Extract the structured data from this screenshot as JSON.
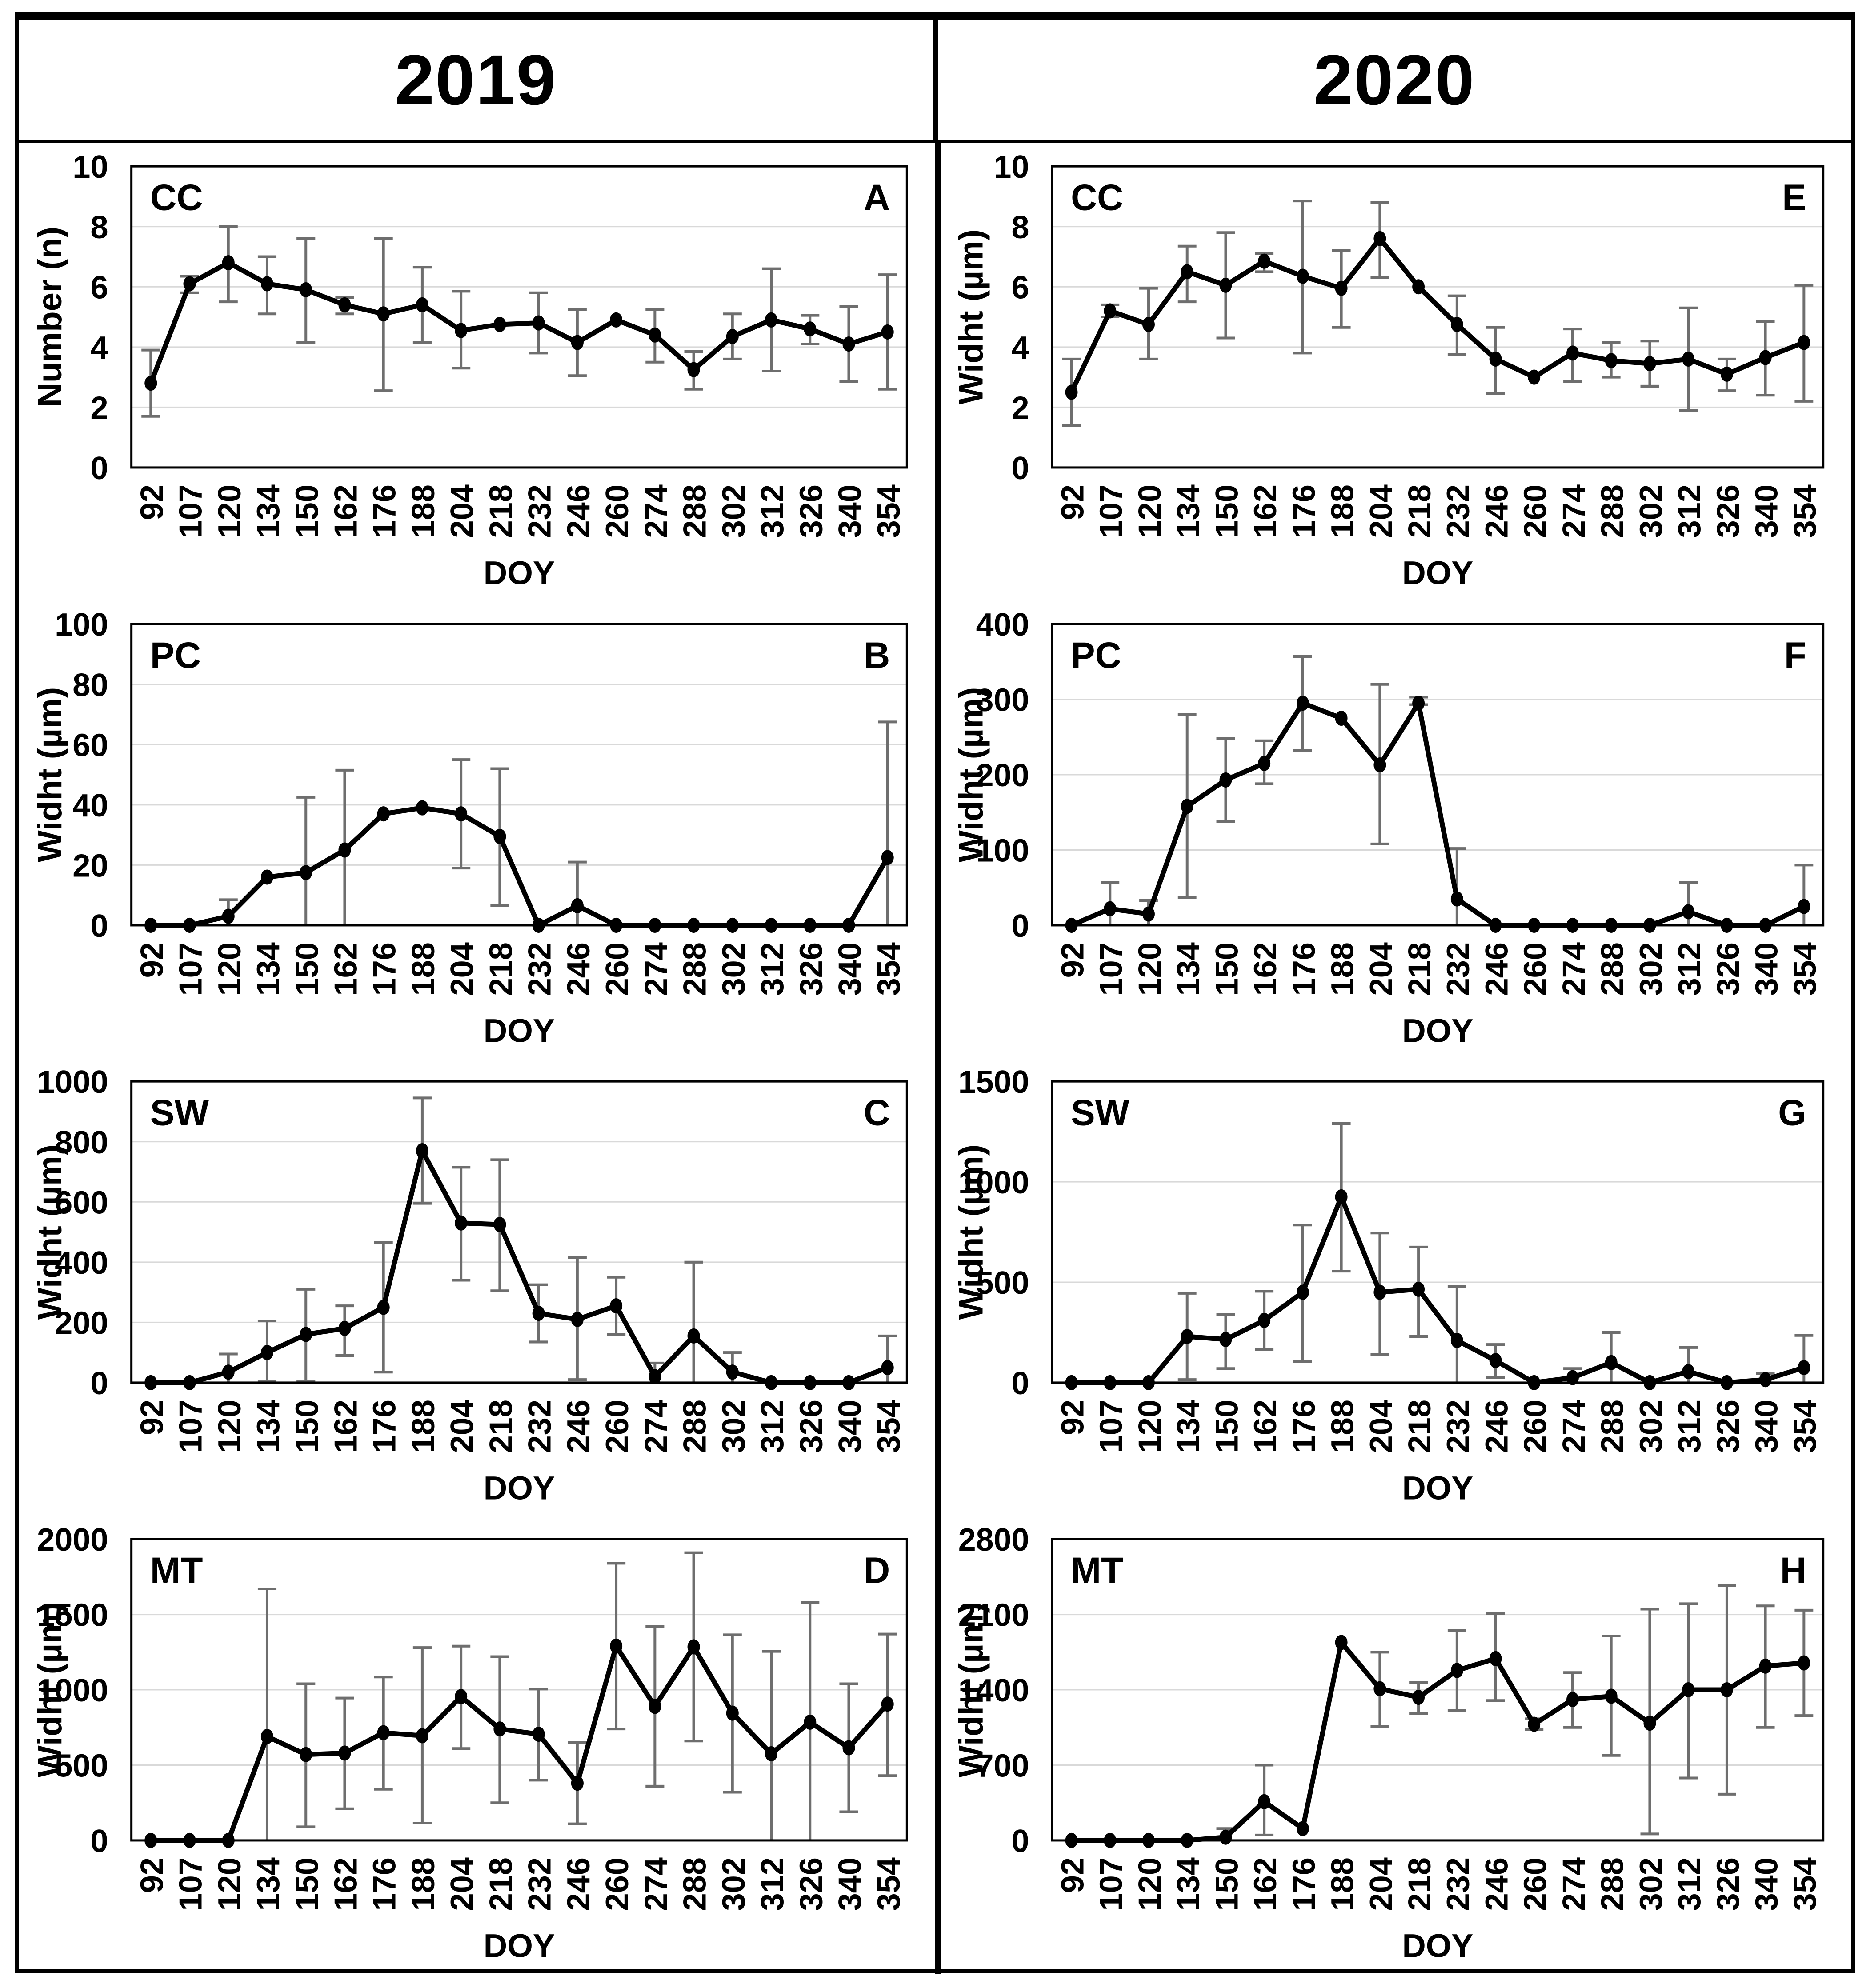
{
  "header": {
    "col1": "2019",
    "col2": "2020"
  },
  "colors": {
    "line": "#000000",
    "marker": "#000000",
    "error_bar": "#6e6e6e",
    "gridline": "#d9d9d9",
    "frame": "#000000",
    "text": "#000000",
    "background": "#ffffff"
  },
  "chart_data": {
    "type": "line",
    "x_label": "DOY",
    "legend": "none",
    "grid": "horizontal",
    "categories": [
      "92",
      "107",
      "120",
      "134",
      "150",
      "162",
      "176",
      "188",
      "204",
      "218",
      "232",
      "246",
      "260",
      "274",
      "288",
      "302",
      "312",
      "326",
      "340",
      "354"
    ],
    "charts": [
      {
        "panel": "A",
        "group": "CC",
        "year": "2019",
        "ylabel": "Number (n)",
        "ylim": [
          0,
          10
        ],
        "ystep": 2,
        "values": [
          2.8,
          6.1,
          6.8,
          6.1,
          5.9,
          5.4,
          5.1,
          5.4,
          4.55,
          4.75,
          4.8,
          4.15,
          4.9,
          4.4,
          3.25,
          4.35,
          4.9,
          4.6,
          4.1,
          4.5
        ],
        "err_low": [
          1.7,
          5.8,
          5.5,
          5.1,
          4.15,
          5.1,
          2.55,
          4.15,
          3.3,
          4.75,
          3.8,
          3.05,
          4.9,
          3.5,
          2.6,
          3.6,
          3.2,
          4.1,
          2.85,
          2.6
        ],
        "err_high": [
          3.9,
          6.35,
          8.0,
          7.0,
          7.6,
          5.65,
          7.6,
          6.65,
          5.85,
          4.75,
          5.8,
          5.25,
          4.9,
          5.25,
          3.85,
          5.1,
          6.6,
          5.05,
          5.35,
          6.4
        ]
      },
      {
        "panel": "E",
        "group": "CC",
        "year": "2020",
        "ylabel": "Widht (µm)",
        "ylim": [
          0,
          10
        ],
        "ystep": 2,
        "values": [
          2.5,
          5.2,
          4.75,
          6.5,
          6.05,
          6.85,
          6.35,
          5.95,
          7.6,
          6.0,
          4.75,
          3.6,
          3.0,
          3.8,
          3.55,
          3.45,
          3.6,
          3.1,
          3.65,
          4.15
        ],
        "err_low": [
          1.4,
          5.0,
          3.6,
          5.5,
          4.3,
          6.5,
          3.8,
          4.65,
          6.3,
          6.0,
          3.75,
          2.45,
          3.0,
          2.85,
          3.0,
          2.7,
          1.9,
          2.55,
          2.4,
          2.2
        ],
        "err_high": [
          3.6,
          5.4,
          5.95,
          7.35,
          7.8,
          7.1,
          8.85,
          7.2,
          8.8,
          6.0,
          5.7,
          4.65,
          3.0,
          4.6,
          4.15,
          4.2,
          5.3,
          3.6,
          4.85,
          6.05
        ]
      },
      {
        "panel": "B",
        "group": "PC",
        "year": "2019",
        "ylabel": "Widht (µm)",
        "ylim": [
          0,
          100
        ],
        "ystep": 20,
        "values": [
          0,
          0,
          3,
          16,
          17.5,
          25,
          37,
          39,
          37,
          29.5,
          0,
          6.5,
          0,
          0,
          0,
          0,
          0,
          0,
          0,
          22.5
        ],
        "err_low": [
          0,
          0,
          0,
          16,
          0,
          0,
          37,
          39,
          19,
          6.5,
          0,
          0,
          0,
          0,
          0,
          0,
          0,
          0,
          0,
          0
        ],
        "err_high": [
          0,
          0,
          8.5,
          16,
          42.5,
          51.5,
          37,
          39,
          55,
          52,
          0,
          21,
          0,
          0,
          0,
          0,
          0,
          0,
          0,
          67.5
        ]
      },
      {
        "panel": "F",
        "group": "PC",
        "year": "2020",
        "ylabel": "Widht (µm)",
        "ylim": [
          0,
          400
        ],
        "ystep": 100,
        "values": [
          0,
          22,
          15,
          158,
          193,
          215,
          295,
          275,
          213,
          295,
          35,
          0,
          0,
          0,
          0,
          0,
          18,
          0,
          0,
          25
        ],
        "err_low": [
          0,
          0,
          0,
          37,
          138,
          188,
          232,
          275,
          108,
          293,
          0,
          0,
          0,
          0,
          0,
          0,
          0,
          0,
          0,
          0
        ],
        "err_high": [
          0,
          57,
          33,
          280,
          248,
          245,
          357,
          275,
          320,
          303,
          102,
          0,
          0,
          0,
          0,
          0,
          57,
          0,
          0,
          80
        ]
      },
      {
        "panel": "C",
        "group": "SW",
        "year": "2019",
        "ylabel": "Widht (µm)",
        "ylim": [
          0,
          1000
        ],
        "ystep": 200,
        "values": [
          0,
          0,
          35,
          100,
          160,
          180,
          250,
          770,
          530,
          525,
          230,
          210,
          255,
          20,
          155,
          35,
          0,
          0,
          0,
          50
        ],
        "err_low": [
          0,
          0,
          0,
          5,
          5,
          90,
          35,
          595,
          340,
          305,
          135,
          10,
          160,
          0,
          0,
          0,
          0,
          0,
          0,
          0
        ],
        "err_high": [
          0,
          0,
          95,
          205,
          310,
          255,
          465,
          945,
          715,
          740,
          325,
          415,
          350,
          65,
          400,
          100,
          0,
          0,
          0,
          155
        ]
      },
      {
        "panel": "G",
        "group": "SW",
        "year": "2020",
        "ylabel": "Widht (µm)",
        "ylim": [
          0,
          1500
        ],
        "ystep": 500,
        "values": [
          0,
          0,
          0,
          230,
          215,
          310,
          450,
          925,
          450,
          465,
          210,
          110,
          0,
          25,
          100,
          0,
          55,
          0,
          15,
          75
        ],
        "err_low": [
          0,
          0,
          0,
          15,
          70,
          165,
          105,
          555,
          140,
          230,
          0,
          25,
          0,
          0,
          0,
          0,
          0,
          0,
          0,
          0
        ],
        "err_high": [
          0,
          0,
          0,
          445,
          340,
          455,
          785,
          1290,
          745,
          675,
          480,
          190,
          0,
          70,
          250,
          0,
          175,
          0,
          45,
          235
        ]
      },
      {
        "panel": "D",
        "group": "MT",
        "year": "2019",
        "ylabel": "Widht (µm)",
        "ylim": [
          0,
          2000
        ],
        "ystep": 500,
        "values": [
          0,
          0,
          0,
          690,
          570,
          580,
          715,
          695,
          955,
          740,
          705,
          380,
          1290,
          890,
          1285,
          845,
          575,
          785,
          615,
          905
        ],
        "err_low": [
          0,
          0,
          0,
          0,
          90,
          210,
          340,
          115,
          610,
          250,
          400,
          110,
          740,
          360,
          660,
          320,
          0,
          0,
          190,
          430
        ],
        "err_high": [
          0,
          0,
          0,
          1670,
          1040,
          945,
          1085,
          1280,
          1290,
          1220,
          1005,
          650,
          1840,
          1420,
          1910,
          1365,
          1255,
          1580,
          1040,
          1370
        ]
      },
      {
        "panel": "H",
        "group": "MT",
        "year": "2020",
        "ylabel": "Widht (µm)",
        "ylim": [
          0,
          2800
        ],
        "ystep": 700,
        "values": [
          0,
          0,
          0,
          0,
          30,
          360,
          110,
          1840,
          1410,
          1330,
          1580,
          1690,
          1080,
          1310,
          1340,
          1090,
          1400,
          1400,
          1620,
          1650
        ],
        "err_low": [
          0,
          0,
          0,
          0,
          0,
          50,
          110,
          1840,
          1060,
          1180,
          1210,
          1300,
          1030,
          1050,
          790,
          60,
          580,
          430,
          1050,
          1160
        ],
        "err_high": [
          0,
          0,
          0,
          0,
          110,
          700,
          110,
          1840,
          1750,
          1470,
          1950,
          2110,
          1130,
          1560,
          1900,
          2150,
          2200,
          2370,
          2180,
          2140
        ]
      }
    ]
  }
}
